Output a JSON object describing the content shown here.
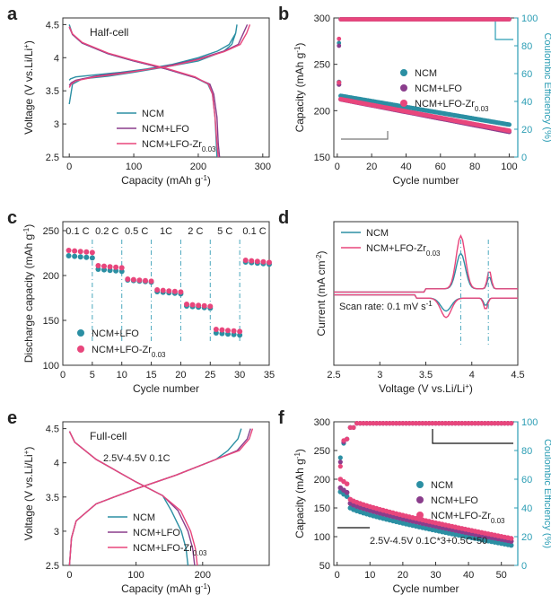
{
  "colors": {
    "ncm": "#2b8fa3",
    "lfo": "#8a3d8c",
    "zr": "#e8467c",
    "axis": "#333333",
    "cyan_axis": "#2b9db4",
    "grey": "#777777",
    "zr_dark": "#b02850"
  },
  "chart_data": [
    {
      "id": "a",
      "letter": "a",
      "type": "line",
      "annotation": "Half-cell",
      "xlabel": "Capacity (mAh g",
      "xlabel_sup": "-1",
      "xlabel_tail": ")",
      "ylabel": "Voltage (V vs.Li/Li",
      "ylabel_sup": "+",
      "ylabel_tail": ")",
      "xlim": [
        -10,
        310
      ],
      "ylim": [
        2.5,
        4.6
      ],
      "xticks": [
        0,
        100,
        200,
        300
      ],
      "yticks": [
        2.5,
        3.0,
        3.5,
        4.0,
        4.5
      ],
      "legend": [
        "NCM",
        "NCM+LFO",
        "NCM+LFO-Zr"
      ],
      "legend_sub": [
        "",
        "",
        "0.03"
      ],
      "series": [
        {
          "name": "NCM",
          "color": "ncm",
          "points": [
            [
              0,
              3.66
            ],
            [
              2,
              3.68
            ],
            [
              10,
              3.71
            ],
            [
              40,
              3.74
            ],
            [
              80,
              3.78
            ],
            [
              120,
              3.83
            ],
            [
              160,
              3.9
            ],
            [
              200,
              4.0
            ],
            [
              230,
              4.1
            ],
            [
              248,
              4.2
            ],
            [
              258,
              4.37
            ],
            [
              260,
              4.5
            ],
            [
              258,
              4.37
            ],
            [
              252,
              4.2
            ],
            [
              240,
              4.1
            ],
            [
              200,
              3.95
            ],
            [
              150,
              3.86
            ],
            [
              100,
              3.78
            ],
            [
              60,
              3.72
            ],
            [
              20,
              3.68
            ],
            [
              5,
              3.6
            ],
            [
              0,
              3.3
            ]
          ],
          "discharge": [
            [
              0,
              4.5
            ],
            [
              5,
              4.35
            ],
            [
              20,
              4.22
            ],
            [
              60,
              4.06
            ],
            [
              100,
              3.95
            ],
            [
              150,
              3.83
            ],
            [
              195,
              3.7
            ],
            [
              215,
              3.6
            ],
            [
              222,
              3.45
            ],
            [
              226,
              3.1
            ],
            [
              228,
              2.7
            ],
            [
              229,
              2.5
            ]
          ]
        },
        {
          "name": "NCM+LFO",
          "color": "lfo",
          "points": [
            [
              0,
              3.58
            ],
            [
              3,
              3.62
            ],
            [
              10,
              3.66
            ],
            [
              40,
              3.72
            ],
            [
              80,
              3.77
            ],
            [
              120,
              3.82
            ],
            [
              160,
              3.89
            ],
            [
              200,
              3.98
            ],
            [
              240,
              4.1
            ],
            [
              262,
              4.2
            ],
            [
              270,
              4.37
            ],
            [
              276,
              4.5
            ]
          ],
          "discharge": [
            [
              0,
              4.46
            ],
            [
              5,
              4.35
            ],
            [
              20,
              4.22
            ],
            [
              60,
              4.06
            ],
            [
              100,
              3.95
            ],
            [
              150,
              3.83
            ],
            [
              195,
              3.7
            ],
            [
              218,
              3.6
            ],
            [
              224,
              3.45
            ],
            [
              229,
              3.1
            ],
            [
              231,
              2.7
            ],
            [
              233,
              2.5
            ]
          ]
        },
        {
          "name": "NCM+LFO-Zr",
          "color": "zr",
          "points": [
            [
              0,
              3.55
            ],
            [
              3,
              3.6
            ],
            [
              10,
              3.65
            ],
            [
              40,
              3.71
            ],
            [
              80,
              3.76
            ],
            [
              120,
              3.82
            ],
            [
              160,
              3.88
            ],
            [
              200,
              3.97
            ],
            [
              240,
              4.09
            ],
            [
              265,
              4.2
            ],
            [
              275,
              4.37
            ],
            [
              280,
              4.5
            ]
          ],
          "discharge": [
            [
              0,
              4.47
            ],
            [
              5,
              4.36
            ],
            [
              20,
              4.23
            ],
            [
              60,
              4.07
            ],
            [
              100,
              3.96
            ],
            [
              150,
              3.84
            ],
            [
              195,
              3.71
            ],
            [
              216,
              3.6
            ],
            [
              222,
              3.45
            ],
            [
              226,
              3.1
            ],
            [
              229,
              2.7
            ],
            [
              231,
              2.5
            ]
          ]
        }
      ]
    },
    {
      "id": "b",
      "letter": "b",
      "type": "scatter",
      "xlabel": "Cycle number",
      "ylabel": "Capacity (mAh g",
      "ylabel_sup": "-1",
      "ylabel_tail": ")",
      "y2label": "Coulombic Efficiency (%)",
      "xlim": [
        -2,
        105
      ],
      "ylim": [
        150,
        300
      ],
      "y2lim": [
        0,
        100
      ],
      "xticks": [
        0,
        20,
        40,
        60,
        80,
        100
      ],
      "yticks": [
        150,
        200,
        250,
        300
      ],
      "y2ticks": [
        0,
        20,
        40,
        60,
        80,
        100
      ],
      "legend": [
        "NCM",
        "NCM+LFO",
        "NCM+LFO-Zr"
      ],
      "legend_sub": [
        "",
        "",
        "0.03"
      ],
      "series": [
        {
          "name": "NCM",
          "color": "ncm",
          "start": 216,
          "end": 185,
          "first": 231,
          "ce_first": 82
        },
        {
          "name": "NCM+LFO",
          "color": "lfo",
          "start": 213,
          "end": 178,
          "first": 229,
          "ce_first": 80
        },
        {
          "name": "NCM+LFO-Zr",
          "color": "zr",
          "start": 214,
          "end": 180,
          "first": 232,
          "ce_first": 85
        }
      ],
      "ce_value": 99
    },
    {
      "id": "c",
      "letter": "c",
      "type": "scatter",
      "xlabel": "Cycle number",
      "ylabel": "Discharge capacity (mAh g",
      "ylabel_sup": "-1",
      "ylabel_tail": ")",
      "xlim": [
        0,
        35
      ],
      "ylim": [
        100,
        260
      ],
      "xticks": [
        0,
        5,
        10,
        15,
        20,
        25,
        30,
        35
      ],
      "yticks": [
        100,
        150,
        200,
        250
      ],
      "rate_labels": [
        "0.1 C",
        "0.2 C",
        "0.5 C",
        "1C",
        "2 C",
        "5 C",
        "0.1 C"
      ],
      "rate_boundaries": [
        5,
        10,
        15,
        20,
        25,
        30
      ],
      "legend": [
        "NCM+LFO",
        "NCM+LFO-Zr"
      ],
      "legend_sub": [
        "",
        "0.03"
      ],
      "series": [
        {
          "name": "NCM+LFO",
          "color": "ncm",
          "levels": [
            222,
            207,
            195,
            182,
            166,
            136,
            215
          ]
        },
        {
          "name": "NCM+LFO-Zr",
          "color": "zr",
          "levels": [
            228,
            211,
            196,
            184,
            168,
            140,
            217
          ]
        }
      ]
    },
    {
      "id": "d",
      "letter": "d",
      "type": "line",
      "xlabel": "Voltage (V vs.Li/Li",
      "xlabel_sup": "+",
      "xlabel_tail": ")",
      "ylabel": "Current (mA cm",
      "ylabel_sup": "-2",
      "ylabel_tail": ")",
      "xlim": [
        2.5,
        4.5
      ],
      "ylim": [
        -1,
        1
      ],
      "xticks": [
        2.5,
        3.0,
        3.5,
        4.0,
        4.5
      ],
      "annotation": "Scan rate: 0.1 mV s",
      "annotation_sup": "-1",
      "peak_markers": [
        3.88,
        4.18
      ],
      "legend": [
        "NCM",
        "NCM+LFO-Zr"
      ],
      "legend_sub": [
        "",
        "0.03"
      ],
      "series": [
        {
          "name": "NCM",
          "color": "ncm",
          "anodic_peak": 0.55,
          "cathodic_peak": -0.2
        },
        {
          "name": "NCM+LFO-Zr",
          "color": "zr",
          "anodic_peak": 0.82,
          "cathodic_peak": -0.3
        }
      ]
    },
    {
      "id": "e",
      "letter": "e",
      "type": "line",
      "annotation": "Full-cell",
      "annotation2": "2.5V-4.5V 0.1C",
      "xlabel": "Capacity (mAh g",
      "xlabel_sup": "-1",
      "xlabel_tail": ")",
      "ylabel": "Voltage (V vs.Li/Li",
      "ylabel_sup": "+",
      "ylabel_tail": ")",
      "xlim": [
        -10,
        300
      ],
      "ylim": [
        2.5,
        4.6
      ],
      "xticks": [
        0,
        100,
        200
      ],
      "yticks": [
        2.5,
        3.0,
        3.5,
        4.0,
        4.5
      ],
      "legend": [
        "NCM",
        "NCM+LFO",
        "NCM+LFO-Zr"
      ],
      "legend_sub": [
        "",
        "",
        "0.03"
      ],
      "series": [
        {
          "name": "NCM",
          "color": "ncm",
          "charge_end": 258,
          "discharge_end": 178
        },
        {
          "name": "NCM+LFO",
          "color": "lfo",
          "charge_end": 272,
          "discharge_end": 188
        },
        {
          "name": "NCM+LFO-Zr",
          "color": "zr",
          "charge_end": 275,
          "discharge_end": 192
        }
      ]
    },
    {
      "id": "f",
      "letter": "f",
      "type": "scatter",
      "xlabel": "Cycle number",
      "ylabel": "Capacity (mAh g",
      "ylabel_sup": "-1",
      "ylabel_tail": ")",
      "y2label": "Coulombic Efficiency (%)",
      "xlim": [
        -1,
        55
      ],
      "ylim": [
        50,
        300
      ],
      "y2lim": [
        0,
        100
      ],
      "xticks": [
        0,
        10,
        20,
        30,
        40,
        50
      ],
      "yticks": [
        50,
        100,
        150,
        200,
        250,
        300
      ],
      "y2ticks": [
        0,
        20,
        40,
        60,
        80,
        100
      ],
      "annotation": "2.5V-4.5V 0.1C*3+0.5C*50",
      "legend": [
        "NCM",
        "NCM+LFO",
        "NCM+LFO-Zr"
      ],
      "legend_sub": [
        "",
        "",
        "0.03"
      ],
      "series": [
        {
          "name": "NCM",
          "color": "ncm",
          "start": 150,
          "end": 85,
          "first": 178
        },
        {
          "name": "NCM+LFO",
          "color": "lfo",
          "start": 158,
          "end": 92,
          "first": 185
        },
        {
          "name": "NCM+LFO-Zr",
          "color": "zr",
          "start": 165,
          "end": 97,
          "first": 200
        }
      ],
      "ce_value": 99
    }
  ]
}
